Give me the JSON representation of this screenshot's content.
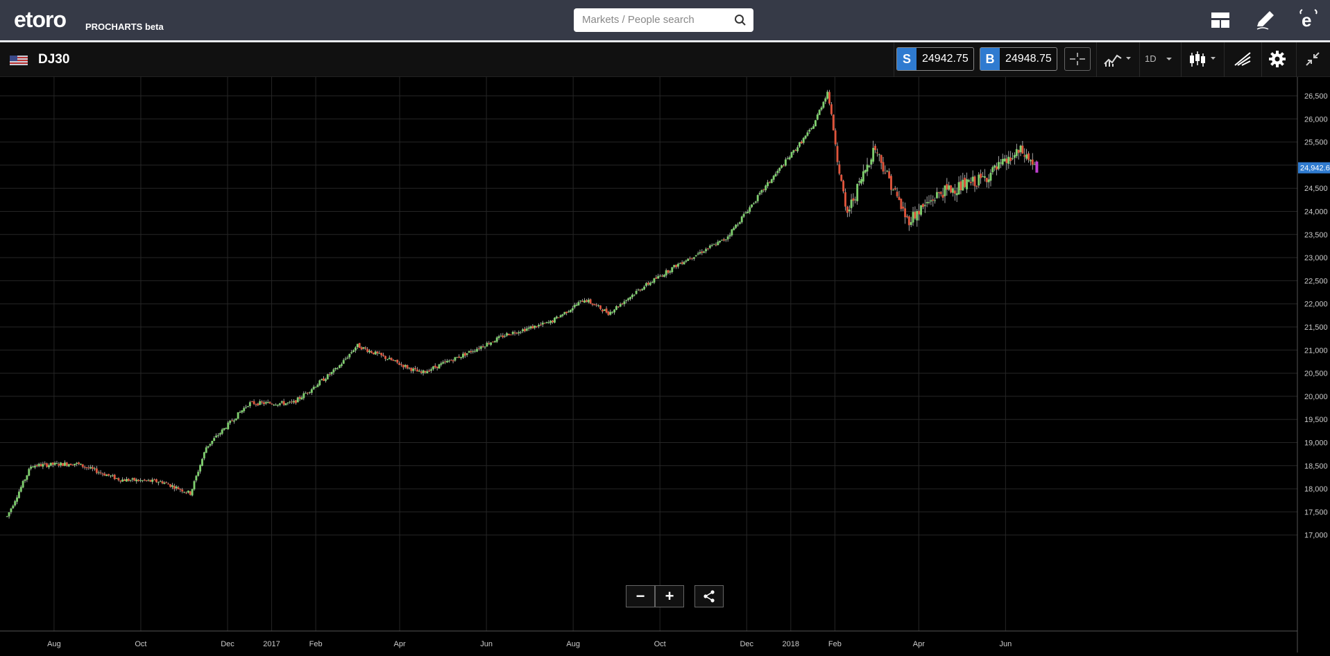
{
  "header": {
    "logo": "etoro",
    "product": "PROCHARTS beta",
    "search_placeholder": "Markets / People search"
  },
  "toolbar": {
    "instrument": "DJ30",
    "sell_letter": "S",
    "sell_price": "24942.75",
    "buy_letter": "B",
    "buy_price": "24948.75",
    "timeframe": "1D"
  },
  "chart_data": {
    "type": "candlestick",
    "last_price_label": "24,942.6",
    "y_ticks": [
      "26,500",
      "26,000",
      "25,500",
      "25,000",
      "24,500",
      "24,000",
      "23,500",
      "23,000",
      "22,500",
      "22,000",
      "21,500",
      "21,000",
      "20,500",
      "20,000",
      "19,500",
      "19,000",
      "18,500",
      "18,000",
      "17,500",
      "17,000"
    ],
    "ylim": [
      17000,
      26500
    ],
    "x_ticks": [
      "Jun",
      "Aug",
      "Oct",
      "Dec",
      "2017",
      "Feb",
      "Apr",
      "Jun",
      "Aug",
      "Oct",
      "Dec",
      "2018",
      "Feb",
      "Apr",
      "Jun"
    ],
    "approx_close_path": [
      [
        "2016-06-28",
        17400
      ],
      [
        "2016-07-15",
        18500
      ],
      [
        "2016-08-15",
        18550
      ],
      [
        "2016-09-15",
        18200
      ],
      [
        "2016-10-15",
        18150
      ],
      [
        "2016-11-04",
        17900
      ],
      [
        "2016-11-15",
        18900
      ],
      [
        "2016-12-15",
        19850
      ],
      [
        "2017-01-15",
        19850
      ],
      [
        "2017-02-15",
        20600
      ],
      [
        "2017-03-01",
        21100
      ],
      [
        "2017-04-15",
        20500
      ],
      [
        "2017-05-15",
        20900
      ],
      [
        "2017-06-15",
        21350
      ],
      [
        "2017-07-15",
        21600
      ],
      [
        "2017-08-08",
        22100
      ],
      [
        "2017-08-25",
        21800
      ],
      [
        "2017-09-15",
        22300
      ],
      [
        "2017-10-15",
        22900
      ],
      [
        "2017-11-15",
        23400
      ],
      [
        "2017-12-15",
        24600
      ],
      [
        "2018-01-15",
        25800
      ],
      [
        "2018-01-26",
        26600
      ],
      [
        "2018-02-08",
        23900
      ],
      [
        "2018-02-28",
        25400
      ],
      [
        "2018-03-23",
        23800
      ],
      [
        "2018-04-15",
        24400
      ],
      [
        "2018-05-15",
        24700
      ],
      [
        "2018-06-11",
        25300
      ],
      [
        "2018-06-22",
        24942
      ]
    ]
  },
  "colors": {
    "up": "#7fcf6e",
    "down": "#e0553c",
    "accent": "#2f7bd0",
    "topbar": "#363a47"
  },
  "icons": [
    "search-icon",
    "layout-icon",
    "pencil-icon",
    "etoro-e-icon",
    "crosshair-icon",
    "indicators-icon",
    "candles-icon",
    "drawing-icon",
    "gear-icon",
    "collapse-icon",
    "share-icon"
  ]
}
